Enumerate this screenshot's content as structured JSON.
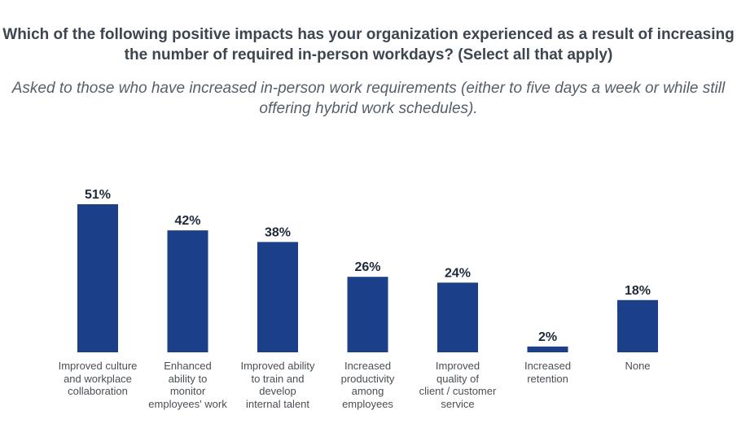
{
  "chart_data": {
    "type": "bar",
    "title": "Which of the following positive impacts has your organization experienced as a result of increasing the number of required in-person workdays? (Select all that apply)",
    "subtitle": "Asked to those who have increased in-person work requirements (either to five days a week or while still offering hybrid work schedules).",
    "categories": [
      [
        "Improved culture",
        "and workplace",
        "collaboration"
      ],
      [
        "Enhanced",
        "ability to",
        "monitor",
        "employees' work"
      ],
      [
        "Improved ability",
        "to train and",
        "develop",
        "internal talent"
      ],
      [
        "Increased",
        "productivity",
        "among",
        "employees"
      ],
      [
        "Improved",
        "quality of",
        "client / customer",
        "service"
      ],
      [
        "Increased",
        "retention"
      ],
      [
        "None"
      ]
    ],
    "values": [
      51,
      42,
      38,
      26,
      24,
      2,
      18
    ],
    "value_labels": [
      "51%",
      "42%",
      "38%",
      "26%",
      "24%",
      "2%",
      "18%"
    ],
    "bar_color": "#1c3f8a",
    "ylim": [
      0,
      51
    ]
  }
}
